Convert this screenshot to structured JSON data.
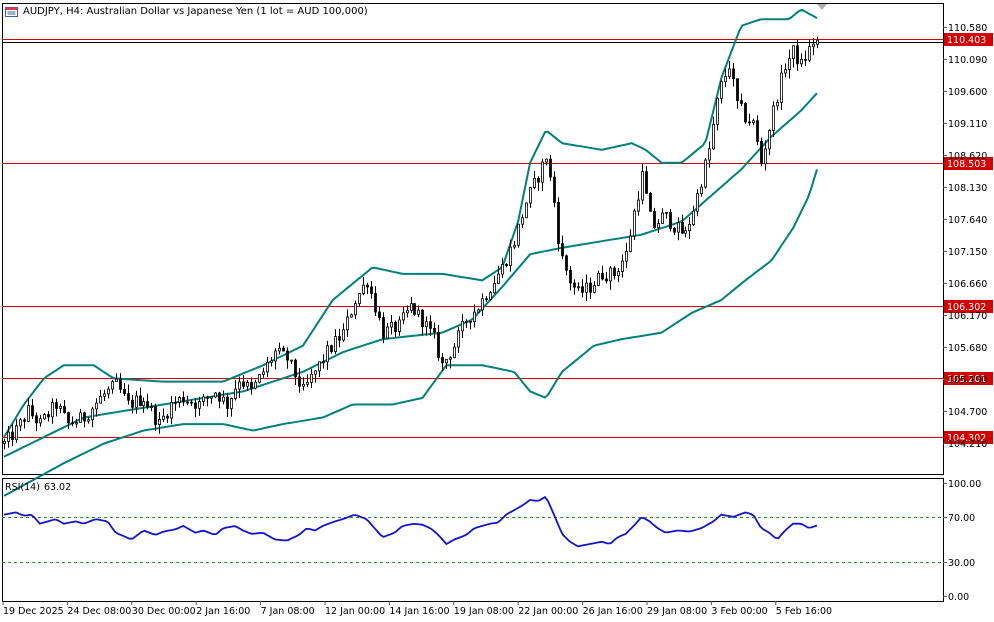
{
  "header": {
    "symbol": "AUDJPY, H4:",
    "description": "Australian Dollar vs Japanese Yen (1 lot = AUD 100,000)",
    "icon": "chart-window-icon"
  },
  "rsi": {
    "name": "RSI(14)",
    "value": "63.02"
  },
  "colors": {
    "candle": "#000000",
    "bands": "#00807a",
    "levels": "#d40000",
    "rsi": "#1414c8",
    "grid": "#555555"
  },
  "chart_data": [
    {
      "type": "candlestick",
      "title": "AUDJPY, H4:",
      "ylim": [
        104.0,
        110.8
      ],
      "yticks": [
        "110.580",
        "110.090",
        "109.600",
        "109.110",
        "108.620",
        "108.130",
        "107.640",
        "107.150",
        "106.660",
        "106.170",
        "105.680",
        "105.190",
        "104.700",
        "104.210"
      ],
      "xticks": [
        "19 Dec 2025",
        "24 Dec 08:00",
        "30 Dec 00:00",
        "2 Jan 16:00",
        "7 Jan 08:00",
        "12 Jan 00:00",
        "14 Jan 16:00",
        "19 Jan 08:00",
        "22 Jan 00:00",
        "26 Jan 16:00",
        "29 Jan 08:00",
        "3 Feb 00:00",
        "5 Feb 16:00"
      ],
      "levels": [
        {
          "value": 110.403,
          "label": "110.403"
        },
        {
          "value": 108.503,
          "label": "108.503"
        },
        {
          "value": 106.302,
          "label": "106.302"
        },
        {
          "value": 105.201,
          "label": "105.201"
        },
        {
          "value": 104.302,
          "label": "104.302"
        }
      ],
      "last_price": 110.35,
      "close_path": [
        [
          0,
          104.2
        ],
        [
          6,
          104.4
        ],
        [
          12,
          104.7
        ],
        [
          18,
          104.5
        ],
        [
          26,
          104.8
        ],
        [
          32,
          104.5
        ],
        [
          40,
          104.6
        ],
        [
          48,
          104.9
        ],
        [
          56,
          105.1
        ],
        [
          62,
          104.8
        ],
        [
          70,
          104.9
        ],
        [
          78,
          104.5
        ],
        [
          84,
          104.8
        ],
        [
          90,
          104.9
        ],
        [
          98,
          104.8
        ],
        [
          106,
          105.0
        ],
        [
          112,
          104.8
        ],
        [
          118,
          105.2
        ],
        [
          124,
          105.0
        ],
        [
          130,
          105.3
        ],
        [
          136,
          105.6
        ],
        [
          142,
          105.5
        ],
        [
          150,
          105.0
        ],
        [
          156,
          105.3
        ],
        [
          162,
          105.6
        ],
        [
          170,
          105.9
        ],
        [
          176,
          106.4
        ],
        [
          182,
          106.7
        ],
        [
          186,
          106.3
        ],
        [
          190,
          105.9
        ],
        [
          198,
          106.0
        ],
        [
          204,
          106.3
        ],
        [
          210,
          106.1
        ],
        [
          216,
          105.8
        ],
        [
          220,
          105.4
        ],
        [
          226,
          105.7
        ],
        [
          232,
          106.1
        ],
        [
          238,
          106.3
        ],
        [
          244,
          106.6
        ],
        [
          250,
          106.9
        ],
        [
          256,
          107.3
        ],
        [
          262,
          107.9
        ],
        [
          268,
          108.3
        ],
        [
          272,
          108.6
        ],
        [
          276,
          107.9
        ],
        [
          279,
          107.1
        ],
        [
          284,
          106.7
        ],
        [
          288,
          106.5
        ],
        [
          294,
          106.6
        ],
        [
          300,
          106.8
        ],
        [
          306,
          106.8
        ],
        [
          312,
          107.1
        ],
        [
          317,
          107.9
        ],
        [
          320,
          108.3
        ],
        [
          325,
          107.5
        ],
        [
          331,
          107.7
        ],
        [
          337,
          107.5
        ],
        [
          342,
          107.4
        ],
        [
          348,
          108.0
        ],
        [
          354,
          108.7
        ],
        [
          359,
          109.6
        ],
        [
          364,
          110.0
        ],
        [
          368,
          109.4
        ],
        [
          372,
          109.2
        ],
        [
          376,
          109.1
        ],
        [
          380,
          108.5
        ],
        [
          386,
          109.3
        ],
        [
          392,
          110.0
        ],
        [
          396,
          110.2
        ],
        [
          400,
          110.0
        ],
        [
          406,
          110.35
        ]
      ],
      "bollinger": {
        "middle": [
          [
            0,
            104.0
          ],
          [
            40,
            104.6
          ],
          [
            80,
            104.8
          ],
          [
            120,
            105.0
          ],
          [
            150,
            105.3
          ],
          [
            170,
            105.6
          ],
          [
            190,
            105.8
          ],
          [
            220,
            105.9
          ],
          [
            235,
            106.1
          ],
          [
            250,
            106.6
          ],
          [
            264,
            107.1
          ],
          [
            280,
            107.2
          ],
          [
            300,
            107.3
          ],
          [
            320,
            107.4
          ],
          [
            340,
            107.6
          ],
          [
            355,
            108.0
          ],
          [
            370,
            108.4
          ],
          [
            385,
            108.9
          ],
          [
            400,
            109.3
          ],
          [
            409,
            109.6
          ]
        ],
        "upper": [
          [
            0,
            104.3
          ],
          [
            10,
            104.8
          ],
          [
            20,
            105.2
          ],
          [
            30,
            105.4
          ],
          [
            45,
            105.4
          ],
          [
            55,
            105.2
          ],
          [
            80,
            105.15
          ],
          [
            110,
            105.15
          ],
          [
            130,
            105.4
          ],
          [
            150,
            105.7
          ],
          [
            165,
            106.4
          ],
          [
            185,
            106.9
          ],
          [
            200,
            106.8
          ],
          [
            220,
            106.8
          ],
          [
            240,
            106.7
          ],
          [
            250,
            106.9
          ],
          [
            258,
            107.6
          ],
          [
            264,
            108.5
          ],
          [
            272,
            109.0
          ],
          [
            280,
            108.8
          ],
          [
            300,
            108.7
          ],
          [
            315,
            108.8
          ],
          [
            322,
            108.7
          ],
          [
            330,
            108.5
          ],
          [
            340,
            108.5
          ],
          [
            352,
            108.8
          ],
          [
            360,
            109.8
          ],
          [
            370,
            110.6
          ],
          [
            380,
            110.7
          ],
          [
            394,
            110.7
          ],
          [
            400,
            110.85
          ],
          [
            409,
            110.7
          ]
        ],
        "lower": [
          [
            0,
            103.4
          ],
          [
            30,
            103.9
          ],
          [
            50,
            104.2
          ],
          [
            70,
            104.4
          ],
          [
            90,
            104.5
          ],
          [
            110,
            104.5
          ],
          [
            125,
            104.4
          ],
          [
            140,
            104.5
          ],
          [
            160,
            104.6
          ],
          [
            175,
            104.8
          ],
          [
            195,
            104.8
          ],
          [
            210,
            104.9
          ],
          [
            222,
            105.4
          ],
          [
            240,
            105.4
          ],
          [
            256,
            105.3
          ],
          [
            264,
            105.0
          ],
          [
            272,
            104.9
          ],
          [
            280,
            105.3
          ],
          [
            296,
            105.7
          ],
          [
            310,
            105.8
          ],
          [
            330,
            105.9
          ],
          [
            345,
            106.2
          ],
          [
            360,
            106.4
          ],
          [
            372,
            106.7
          ],
          [
            385,
            107.0
          ],
          [
            396,
            107.5
          ],
          [
            404,
            108.0
          ],
          [
            409,
            108.5
          ]
        ]
      }
    },
    {
      "type": "line",
      "title": "RSI(14) 63.02",
      "ylim": [
        0,
        100
      ],
      "yticks": [
        "100.00",
        "70.00",
        "30.00",
        "0.00"
      ],
      "levels": [
        70,
        30
      ],
      "values": [
        [
          0,
          72
        ],
        [
          6,
          74
        ],
        [
          10,
          71
        ],
        [
          14,
          72
        ],
        [
          18,
          64
        ],
        [
          22,
          66
        ],
        [
          26,
          68
        ],
        [
          30,
          64
        ],
        [
          36,
          66
        ],
        [
          40,
          64
        ],
        [
          46,
          68
        ],
        [
          52,
          66
        ],
        [
          56,
          56
        ],
        [
          60,
          53
        ],
        [
          64,
          50
        ],
        [
          70,
          58
        ],
        [
          76,
          54
        ],
        [
          80,
          57
        ],
        [
          86,
          59
        ],
        [
          90,
          62
        ],
        [
          96,
          56
        ],
        [
          100,
          58
        ],
        [
          106,
          54
        ],
        [
          110,
          60
        ],
        [
          116,
          62
        ],
        [
          120,
          58
        ],
        [
          124,
          55
        ],
        [
          130,
          56
        ],
        [
          136,
          50
        ],
        [
          142,
          49
        ],
        [
          148,
          54
        ],
        [
          152,
          60
        ],
        [
          156,
          58
        ],
        [
          160,
          62
        ],
        [
          166,
          66
        ],
        [
          170,
          68
        ],
        [
          176,
          72
        ],
        [
          182,
          68
        ],
        [
          186,
          60
        ],
        [
          190,
          52
        ],
        [
          196,
          56
        ],
        [
          200,
          62
        ],
        [
          206,
          64
        ],
        [
          210,
          63
        ],
        [
          214,
          60
        ],
        [
          218,
          54
        ],
        [
          222,
          46
        ],
        [
          226,
          50
        ],
        [
          232,
          54
        ],
        [
          236,
          60
        ],
        [
          240,
          62
        ],
        [
          244,
          64
        ],
        [
          248,
          65
        ],
        [
          252,
          72
        ],
        [
          256,
          76
        ],
        [
          260,
          80
        ],
        [
          264,
          85
        ],
        [
          268,
          84
        ],
        [
          272,
          88
        ],
        [
          276,
          72
        ],
        [
          280,
          55
        ],
        [
          284,
          48
        ],
        [
          288,
          44
        ],
        [
          294,
          46
        ],
        [
          300,
          48
        ],
        [
          304,
          46
        ],
        [
          308,
          52
        ],
        [
          312,
          55
        ],
        [
          316,
          62
        ],
        [
          320,
          70
        ],
        [
          324,
          66
        ],
        [
          328,
          60
        ],
        [
          332,
          56
        ],
        [
          338,
          58
        ],
        [
          344,
          57
        ],
        [
          350,
          60
        ],
        [
          356,
          66
        ],
        [
          360,
          72
        ],
        [
          366,
          70
        ],
        [
          372,
          74
        ],
        [
          376,
          72
        ],
        [
          380,
          60
        ],
        [
          384,
          56
        ],
        [
          388,
          50
        ],
        [
          392,
          58
        ],
        [
          396,
          64
        ],
        [
          400,
          64
        ],
        [
          404,
          60
        ],
        [
          409,
          63
        ]
      ]
    }
  ]
}
